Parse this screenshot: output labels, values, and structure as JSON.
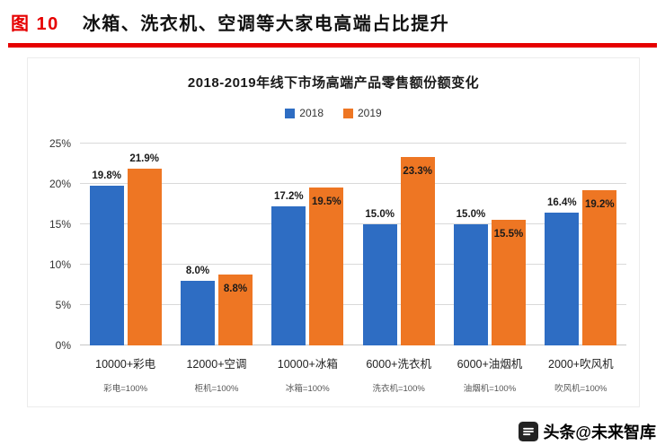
{
  "header": {
    "fig_label": "图 10",
    "title": "冰箱、洗衣机、空调等大家电高端占比提升"
  },
  "accent": {
    "red": "#e60000"
  },
  "chart_data": {
    "type": "bar",
    "title": "2018-2019年线下市场高端产品零售额份额变化",
    "categories": [
      "10000+彩电",
      "12000+空调",
      "10000+冰箱",
      "6000+洗衣机",
      "6000+油烟机",
      "2000+吹风机"
    ],
    "category_notes": [
      "彩电=100%",
      "柜机=100%",
      "冰箱=100%",
      "洗衣机=100%",
      "油烟机=100%",
      "吹风机=100%"
    ],
    "series": [
      {
        "name": "2018",
        "color": "#2e6dc3",
        "values": [
          19.8,
          8.0,
          17.2,
          15.0,
          15.0,
          16.4
        ],
        "labels": [
          "19.8%",
          "8.0%",
          "17.2%",
          "15.0%",
          "15.0%",
          "16.4%"
        ],
        "label_inside": [
          false,
          false,
          false,
          false,
          false,
          false
        ]
      },
      {
        "name": "2019",
        "color": "#ee7623",
        "values": [
          21.9,
          8.8,
          19.5,
          23.3,
          15.5,
          19.2
        ],
        "labels": [
          "21.9%",
          "8.8%",
          "19.5%",
          "23.3%",
          "15.5%",
          "19.2%"
        ],
        "label_inside": [
          false,
          true,
          true,
          true,
          true,
          true
        ]
      }
    ],
    "y_ticks": [
      "0%",
      "5%",
      "10%",
      "15%",
      "20%",
      "25%"
    ],
    "ylim": [
      0,
      25
    ],
    "xlabel": "",
    "ylabel": "",
    "grid": true,
    "legend_position": "top"
  },
  "watermark": {
    "source": "头条@未来智库"
  }
}
